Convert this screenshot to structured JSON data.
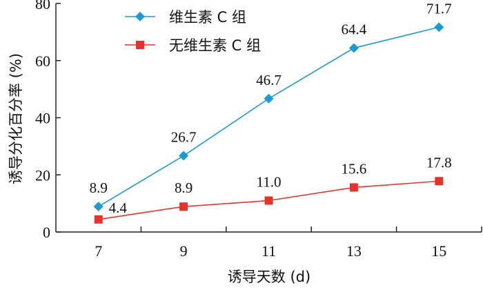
{
  "chart_data": {
    "type": "line",
    "xlabel": "诱导天数 (d)",
    "ylabel": "诱导分化百分率 (%)",
    "x": [
      7,
      9,
      11,
      13,
      15
    ],
    "xlim": [
      6,
      16
    ],
    "ylim": [
      0,
      80
    ],
    "xticks": [
      "7",
      "9",
      "11",
      "13",
      "15"
    ],
    "yticks": [
      "0",
      "20",
      "40",
      "60",
      "80"
    ],
    "grid": false,
    "legend_position": "top-center",
    "series": [
      {
        "name": "维生素 C 组",
        "values": [
          8.9,
          26.7,
          46.7,
          64.4,
          71.7
        ],
        "labels": [
          "8.9",
          "26.7",
          "46.7",
          "64.4",
          "71.7"
        ],
        "color": "#1b9bd1",
        "marker": "diamond"
      },
      {
        "name": "无维生素 C 组",
        "values": [
          4.4,
          8.9,
          11.0,
          15.6,
          17.8
        ],
        "labels": [
          "4.4",
          "8.9",
          "11.0",
          "15.6",
          "17.8"
        ],
        "color": "#e5322b",
        "marker": "square"
      }
    ]
  }
}
